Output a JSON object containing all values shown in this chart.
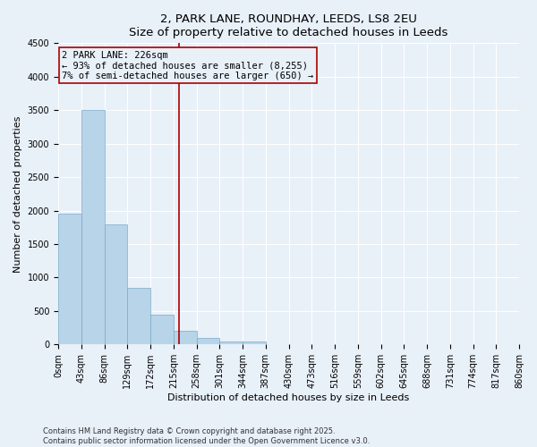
{
  "title_line1": "2, PARK LANE, ROUNDHAY, LEEDS, LS8 2EU",
  "title_line2": "Size of property relative to detached houses in Leeds",
  "xlabel": "Distribution of detached houses by size in Leeds",
  "ylabel": "Number of detached properties",
  "bin_labels": [
    "0sqm",
    "43sqm",
    "86sqm",
    "129sqm",
    "172sqm",
    "215sqm",
    "258sqm",
    "301sqm",
    "344sqm",
    "387sqm",
    "430sqm",
    "473sqm",
    "516sqm",
    "559sqm",
    "602sqm",
    "645sqm",
    "688sqm",
    "731sqm",
    "774sqm",
    "817sqm",
    "860sqm"
  ],
  "bin_edges": [
    0,
    43,
    86,
    129,
    172,
    215,
    258,
    301,
    344,
    387,
    430,
    473,
    516,
    559,
    602,
    645,
    688,
    731,
    774,
    817,
    860
  ],
  "bar_heights": [
    1950,
    3500,
    1800,
    850,
    450,
    200,
    100,
    50,
    50,
    0,
    0,
    0,
    0,
    0,
    0,
    0,
    0,
    0,
    0,
    0
  ],
  "bar_color": "#b8d4e8",
  "bar_edgecolor": "#7aaac8",
  "property_sqm": 226,
  "vline_color": "#aa0000",
  "annotation_line1": "2 PARK LANE: 226sqm",
  "annotation_line2": "← 93% of detached houses are smaller (8,255)",
  "annotation_line3": "7% of semi-detached houses are larger (650) →",
  "annotation_box_edgecolor": "#aa0000",
  "ylim": [
    0,
    4500
  ],
  "yticks": [
    0,
    500,
    1000,
    1500,
    2000,
    2500,
    3000,
    3500,
    4000,
    4500
  ],
  "bg_color": "#e8f0f8",
  "grid_color": "#ffffff",
  "footer_line1": "Contains HM Land Registry data © Crown copyright and database right 2025.",
  "footer_line2": "Contains public sector information licensed under the Open Government Licence v3.0.",
  "title_fontsize": 9.5,
  "axis_label_fontsize": 8,
  "tick_fontsize": 7,
  "annotation_fontsize": 7.5
}
